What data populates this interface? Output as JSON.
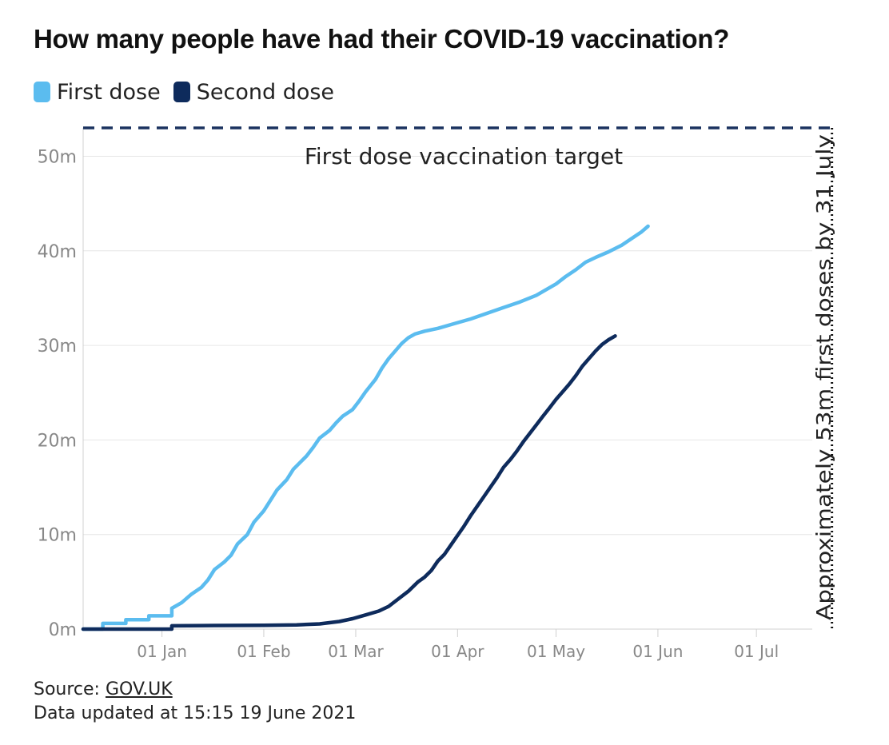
{
  "chart_data": {
    "type": "line",
    "title": "How many people have had their COVID-19 vaccination?",
    "xlabel": "",
    "ylabel": "",
    "x_range_days": [
      0,
      222
    ],
    "ylim": [
      0,
      53
    ],
    "y_ticks": [
      {
        "value": 0,
        "label": "0m"
      },
      {
        "value": 10,
        "label": "10m"
      },
      {
        "value": 20,
        "label": "20m"
      },
      {
        "value": 30,
        "label": "30m"
      },
      {
        "value": 40,
        "label": "40m"
      },
      {
        "value": 50,
        "label": "50m"
      }
    ],
    "x_ticks": [
      {
        "day": 24,
        "label": "01 Jan"
      },
      {
        "day": 55,
        "label": "01 Feb"
      },
      {
        "day": 83,
        "label": "01 Mar"
      },
      {
        "day": 114,
        "label": "01 Apr"
      },
      {
        "day": 144,
        "label": "01 May"
      },
      {
        "day": 175,
        "label": "01 Jun"
      },
      {
        "day": 205,
        "label": "01 Jul"
      }
    ],
    "grid": true,
    "legend_position": "top-left",
    "series": [
      {
        "name": "First dose",
        "color": "#5bbcef",
        "points": [
          [
            0,
            0
          ],
          [
            6,
            0
          ],
          [
            6,
            0.6
          ],
          [
            13,
            0.6
          ],
          [
            13,
            1.0
          ],
          [
            20,
            1.0
          ],
          [
            20,
            1.4
          ],
          [
            27,
            1.4
          ],
          [
            27,
            2.2
          ],
          [
            30,
            2.8
          ],
          [
            33,
            3.7
          ],
          [
            36,
            4.4
          ],
          [
            38,
            5.2
          ],
          [
            40,
            6.3
          ],
          [
            43,
            7.1
          ],
          [
            45,
            7.8
          ],
          [
            47,
            9.0
          ],
          [
            50,
            10.0
          ],
          [
            52,
            11.3
          ],
          [
            55,
            12.5
          ],
          [
            57,
            13.6
          ],
          [
            59,
            14.7
          ],
          [
            62,
            15.8
          ],
          [
            64,
            16.9
          ],
          [
            66,
            17.6
          ],
          [
            68,
            18.3
          ],
          [
            70,
            19.2
          ],
          [
            72,
            20.2
          ],
          [
            75,
            21.0
          ],
          [
            77,
            21.8
          ],
          [
            79,
            22.5
          ],
          [
            82,
            23.2
          ],
          [
            84,
            24.1
          ],
          [
            86,
            25.1
          ],
          [
            89,
            26.4
          ],
          [
            91,
            27.6
          ],
          [
            93,
            28.6
          ],
          [
            95,
            29.4
          ],
          [
            97,
            30.2
          ],
          [
            99,
            30.8
          ],
          [
            101,
            31.2
          ],
          [
            104,
            31.5
          ],
          [
            108,
            31.8
          ],
          [
            113,
            32.3
          ],
          [
            118,
            32.8
          ],
          [
            123,
            33.4
          ],
          [
            128,
            34.0
          ],
          [
            133,
            34.6
          ],
          [
            138,
            35.3
          ],
          [
            141,
            35.9
          ],
          [
            144,
            36.5
          ],
          [
            147,
            37.3
          ],
          [
            150,
            38.0
          ],
          [
            153,
            38.8
          ],
          [
            156,
            39.3
          ],
          [
            160,
            39.9
          ],
          [
            164,
            40.6
          ],
          [
            167,
            41.3
          ],
          [
            170,
            42.0
          ],
          [
            172,
            42.6
          ]
        ]
      },
      {
        "name": "Second dose",
        "color": "#0e2b5c",
        "points": [
          [
            0,
            0
          ],
          [
            27,
            0
          ],
          [
            27,
            0.35
          ],
          [
            40,
            0.38
          ],
          [
            55,
            0.4
          ],
          [
            65,
            0.45
          ],
          [
            72,
            0.55
          ],
          [
            78,
            0.8
          ],
          [
            82,
            1.1
          ],
          [
            86,
            1.5
          ],
          [
            90,
            1.9
          ],
          [
            93,
            2.4
          ],
          [
            96,
            3.2
          ],
          [
            99,
            4.0
          ],
          [
            102,
            5.0
          ],
          [
            104,
            5.5
          ],
          [
            106,
            6.2
          ],
          [
            108,
            7.2
          ],
          [
            110,
            7.9
          ],
          [
            112,
            8.9
          ],
          [
            114,
            9.9
          ],
          [
            116,
            10.9
          ],
          [
            118,
            12.0
          ],
          [
            120,
            13.0
          ],
          [
            122,
            14.0
          ],
          [
            124,
            15.0
          ],
          [
            126,
            16.0
          ],
          [
            128,
            17.1
          ],
          [
            130,
            17.9
          ],
          [
            132,
            18.8
          ],
          [
            134,
            19.8
          ],
          [
            136,
            20.7
          ],
          [
            138,
            21.6
          ],
          [
            140,
            22.5
          ],
          [
            142,
            23.4
          ],
          [
            144,
            24.3
          ],
          [
            146,
            25.1
          ],
          [
            148,
            25.9
          ],
          [
            150,
            26.8
          ],
          [
            152,
            27.8
          ],
          [
            154,
            28.6
          ],
          [
            156,
            29.4
          ],
          [
            158,
            30.1
          ],
          [
            160,
            30.6
          ],
          [
            162,
            31.0
          ]
        ]
      }
    ],
    "annotations": {
      "target_value": 53,
      "target_day": 228,
      "target_label": "First dose vaccination target",
      "vertical_label": "Approximately 53m first doses by 31 July"
    }
  },
  "source": {
    "prefix": "Source: ",
    "link_text": "GOV.UK"
  },
  "updated_text": "Data updated at 15:15 19 June 2021",
  "colors": {
    "first_dose": "#5bbcef",
    "second_dose": "#0e2b5c",
    "target_line": "#1c3360",
    "grid": "#e6e6e6",
    "axis": "#d0d0d0",
    "tick_text": "#888888"
  }
}
